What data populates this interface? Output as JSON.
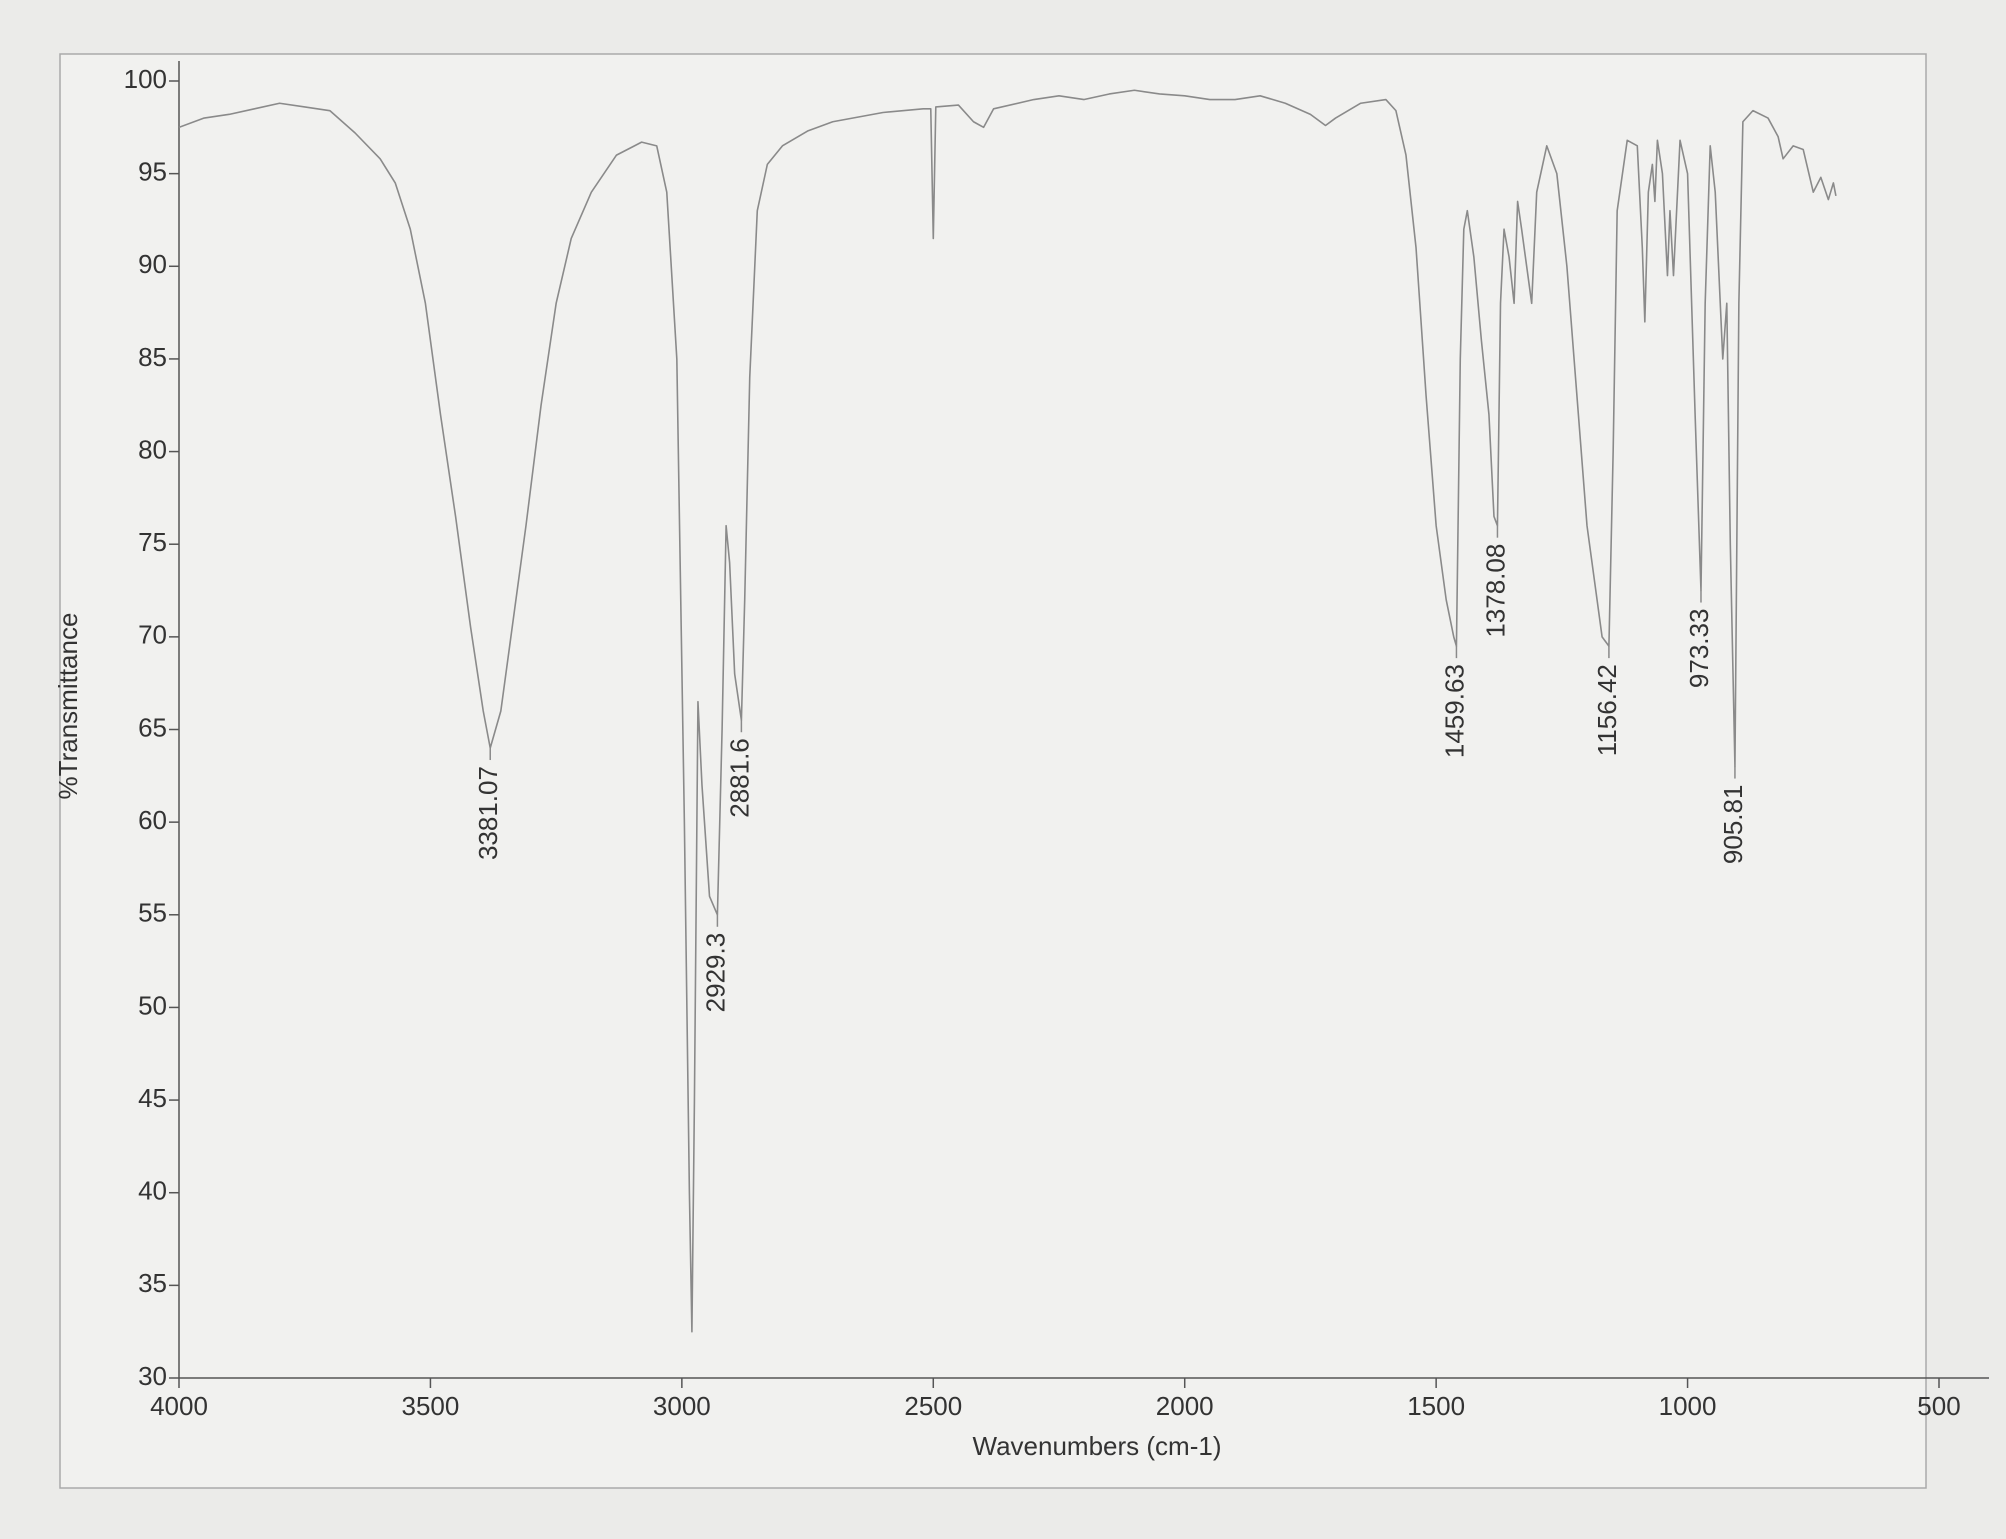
{
  "chart_data": {
    "type": "line",
    "ylabel": "%Transmittance",
    "xlabel": "Wavenumbers (cm-1)",
    "xlim": [
      4000,
      500
    ],
    "ylim": [
      30,
      100
    ],
    "xticks": [
      4000,
      3500,
      3000,
      2500,
      2000,
      1500,
      1000,
      500
    ],
    "yticks": [
      30,
      35,
      40,
      45,
      50,
      55,
      60,
      65,
      70,
      75,
      80,
      85,
      90,
      95,
      100
    ],
    "x": [
      4000,
      3950,
      3900,
      3850,
      3800,
      3750,
      3700,
      3650,
      3600,
      3570,
      3540,
      3510,
      3480,
      3450,
      3420,
      3395,
      3381.07,
      3360,
      3340,
      3310,
      3280,
      3250,
      3220,
      3180,
      3130,
      3080,
      3050,
      3030,
      3010,
      2995,
      2985,
      2980,
      2975,
      2968,
      2960,
      2945,
      2929.3,
      2920,
      2912,
      2905,
      2895,
      2881.6,
      2875,
      2865,
      2850,
      2830,
      2800,
      2750,
      2700,
      2600,
      2520,
      2505,
      2500,
      2495,
      2450,
      2420,
      2400,
      2380,
      2300,
      2250,
      2200,
      2150,
      2100,
      2050,
      2000,
      1950,
      1900,
      1850,
      1800,
      1750,
      1720,
      1700,
      1650,
      1600,
      1580,
      1560,
      1540,
      1520,
      1500,
      1480,
      1465,
      1459.63,
      1452,
      1445,
      1438,
      1425,
      1410,
      1395,
      1385,
      1378.08,
      1372,
      1365,
      1355,
      1345,
      1338,
      1330,
      1320,
      1310,
      1300,
      1280,
      1260,
      1240,
      1220,
      1200,
      1170,
      1156.42,
      1148,
      1140,
      1120,
      1100,
      1090,
      1085,
      1078,
      1070,
      1065,
      1060,
      1050,
      1040,
      1035,
      1028,
      1015,
      1000,
      985,
      973.33,
      965,
      955,
      945,
      930,
      922,
      915,
      905.81,
      898,
      890,
      870,
      840,
      820,
      810,
      790,
      770,
      750,
      735,
      720,
      710,
      705
    ],
    "series": [
      {
        "color": "#8a8a8a",
        "values": [
          97.5,
          98,
          98.2,
          98.5,
          98.8,
          98.6,
          98.4,
          97.2,
          95.8,
          94.5,
          92,
          88,
          82,
          76.5,
          70.5,
          66,
          64,
          66,
          70,
          76,
          82.5,
          88,
          91.5,
          94,
          96,
          96.7,
          96.5,
          94,
          85,
          60,
          40,
          32.5,
          45,
          66.5,
          62,
          56,
          55,
          65,
          76,
          74,
          68,
          65.5,
          72,
          84,
          93,
          95.5,
          96.5,
          97.3,
          97.8,
          98.3,
          98.5,
          98.5,
          91.5,
          98.6,
          98.7,
          97.8,
          97.5,
          98.5,
          99,
          99.2,
          99,
          99.3,
          99.5,
          99.3,
          99.2,
          99,
          99,
          99.2,
          98.8,
          98.2,
          97.6,
          98,
          98.8,
          99,
          98.4,
          96,
          91,
          83,
          76,
          72,
          70,
          69.5,
          85,
          92,
          93,
          90.5,
          86,
          82,
          76.5,
          76,
          88,
          92,
          90.5,
          88,
          93.5,
          92,
          90,
          88,
          94,
          96.5,
          95,
          90,
          83,
          76,
          70,
          69.5,
          80,
          93,
          96.8,
          96.5,
          91,
          87,
          94,
          95.5,
          93.5,
          96.8,
          95,
          89.5,
          93,
          89.5,
          96.8,
          95,
          82,
          72.5,
          88,
          96.5,
          94,
          85,
          88,
          75,
          63,
          88,
          97.8,
          98.4,
          98,
          97,
          95.8,
          96.5,
          96.3,
          94,
          94.8,
          93.6,
          94.5,
          93.8
        ]
      }
    ],
    "peaks": {
      "x": [
        3381.07,
        2929.3,
        2881.6,
        1459.63,
        1378.08,
        1156.42,
        973.33,
        905.81
      ],
      "y": [
        64,
        55,
        65.5,
        69.5,
        76,
        69.5,
        72.5,
        63
      ]
    }
  }
}
